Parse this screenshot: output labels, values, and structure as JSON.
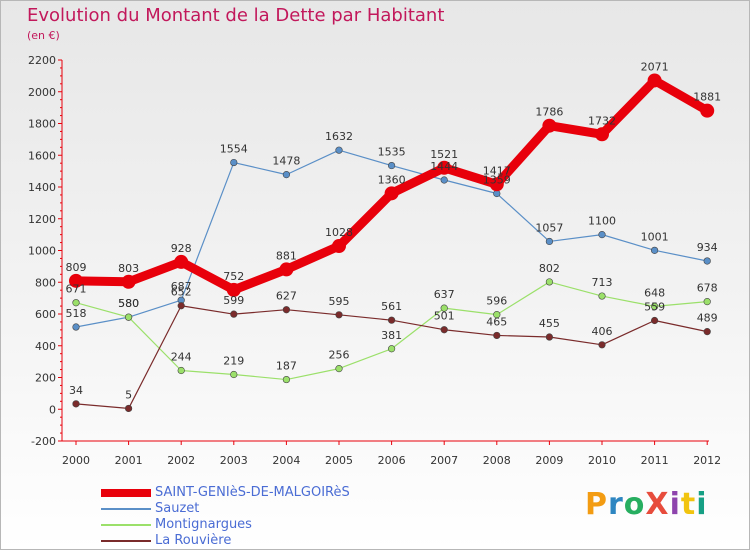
{
  "title": "Evolution du Montant de la Dette par Habitant",
  "subtitle": "(en €)",
  "brand": {
    "text": "ProXiti",
    "letter_colors": [
      "#f39c12",
      "#2e86c1",
      "#27ae60",
      "#e74c3c",
      "#8e44ad",
      "#f1c40f",
      "#16a085"
    ]
  },
  "chart_data": {
    "type": "line",
    "x": [
      "2000",
      "2001",
      "2002",
      "2003",
      "2004",
      "2005",
      "2006",
      "2007",
      "2008",
      "2009",
      "2010",
      "2011",
      "2012"
    ],
    "ylim": [
      -200,
      2200
    ],
    "yticks": [
      -200,
      0,
      200,
      400,
      600,
      800,
      1000,
      1200,
      1400,
      1600,
      1800,
      2000,
      2200
    ],
    "grid": false,
    "legend_position": "bottom-left",
    "series": [
      {
        "name": "SAINT-GENIèS-DE-MALGOIRèS",
        "color": "#e8000b",
        "emphasis": true,
        "values": [
          809,
          803,
          928,
          752,
          881,
          1028,
          1360,
          1521,
          1417,
          1786,
          1732,
          2071,
          1881
        ]
      },
      {
        "name": "Sauzet",
        "color": "#5a8fc7",
        "emphasis": false,
        "values": [
          518,
          580,
          687,
          1554,
          1478,
          1632,
          1535,
          1444,
          1359,
          1057,
          1100,
          1001,
          934
        ]
      },
      {
        "name": "Montignargues",
        "color": "#9be06a",
        "emphasis": false,
        "values": [
          671,
          580,
          244,
          219,
          187,
          256,
          381,
          637,
          596,
          802,
          713,
          648,
          678
        ]
      },
      {
        "name": "La Rouvière",
        "color": "#7a2b2b",
        "emphasis": false,
        "values": [
          34,
          5,
          652,
          599,
          627,
          595,
          561,
          501,
          465,
          455,
          406,
          559,
          489
        ]
      }
    ]
  }
}
